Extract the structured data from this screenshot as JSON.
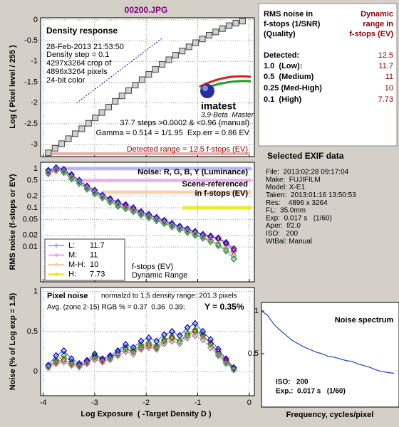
{
  "title": "00200.JPG",
  "chart_data": [
    {
      "type": "line",
      "title": "Density response",
      "ylabel": "Log ( Pixel level / 255 )",
      "xlim": [
        -4.05,
        0.1
      ],
      "ylim": [
        -3.29,
        0.05
      ],
      "yticks": [
        0,
        -0.5,
        -1,
        -1.5,
        -2,
        -2.5,
        -3
      ],
      "grid": true,
      "x": [
        -3.9,
        -3.77,
        -3.64,
        -3.51,
        -3.38,
        -3.25,
        -3.12,
        -2.99,
        -2.86,
        -2.73,
        -2.6,
        -2.47,
        -2.34,
        -2.21,
        -2.08,
        -1.95,
        -1.82,
        -1.69,
        -1.56,
        -1.43,
        -1.3,
        -1.17,
        -1.04,
        -0.91,
        -0.78,
        -0.65,
        -0.52,
        -0.39,
        -0.26,
        -0.13
      ],
      "series": [
        {
          "color": "#404040",
          "marker": "square",
          "values": [
            -3.2,
            -3.09,
            -2.98,
            -2.86,
            -2.74,
            -2.62,
            -2.49,
            -2.36,
            -2.23,
            -2.1,
            -1.96,
            -1.83,
            -1.7,
            -1.57,
            -1.44,
            -1.31,
            -1.19,
            -1.07,
            -0.96,
            -0.85,
            -0.75,
            -0.65,
            -0.55,
            -0.46,
            -0.37,
            -0.29,
            -0.21,
            -0.14,
            -0.08,
            -0.03
          ]
        },
        {
          "color": "#2828c8",
          "dashed": true,
          "x": [
            -3.35,
            -1.7
          ],
          "values": [
            -2.0,
            -0.45
          ]
        }
      ],
      "info": [
        "28-Feb-2013 21:53:50",
        "Density step = 0.1",
        "4297x3264 crop of",
        "4896x3264 pixels",
        "24-bit color"
      ],
      "logo": "imatest",
      "version": "3.9-Beta  Master",
      "stats": [
        "37.7 steps >0.0002 & <0.96 (manual)",
        "Gamma = 0.514 = 1/1.95  Exp.err = 0.86 EV"
      ],
      "detected": "Detected range = 12.5 f-stops (EV)"
    },
    {
      "type": "line",
      "title": "Noise: R, G, B, Y (Luminance)",
      "ylabel": "RMS noise (f-stops or EV)",
      "log_scale": true,
      "xlim": [
        -4.05,
        0.1
      ],
      "ylim": [
        0.0013,
        1.45
      ],
      "yticks": [
        1,
        0.5,
        0.2,
        0.1,
        0.05,
        0.02,
        0.01
      ],
      "grid": true,
      "x": [
        -3.9,
        -3.75,
        -3.6,
        -3.45,
        -3.3,
        -3.15,
        -3.0,
        -2.85,
        -2.7,
        -2.55,
        -2.4,
        -2.25,
        -2.1,
        -1.95,
        -1.8,
        -1.65,
        -1.5,
        -1.35,
        -1.2,
        -1.05,
        -0.9,
        -0.75,
        -0.6,
        -0.45,
        -0.3
      ],
      "series": [
        {
          "color": "#e01010",
          "marker": "diamond",
          "values": [
            0.75,
            0.9,
            0.9,
            0.65,
            0.5,
            0.35,
            0.27,
            0.2,
            0.16,
            0.13,
            0.11,
            0.09,
            0.075,
            0.065,
            0.055,
            0.045,
            0.038,
            0.033,
            0.028,
            0.024,
            0.02,
            0.018,
            0.016,
            0.012,
            0.008
          ]
        },
        {
          "color": "#10a010",
          "marker": "diamond",
          "values": [
            0.85,
            1.0,
            0.8,
            0.55,
            0.42,
            0.3,
            0.23,
            0.18,
            0.14,
            0.11,
            0.095,
            0.08,
            0.066,
            0.056,
            0.047,
            0.04,
            0.033,
            0.028,
            0.024,
            0.02,
            0.017,
            0.014,
            0.011,
            0.008,
            0.005
          ]
        },
        {
          "color": "#1010e0",
          "marker": "diamond",
          "values": [
            0.9,
            1.05,
            0.95,
            0.7,
            0.5,
            0.36,
            0.28,
            0.21,
            0.17,
            0.14,
            0.12,
            0.1,
            0.08,
            0.068,
            0.057,
            0.048,
            0.04,
            0.034,
            0.029,
            0.025,
            0.021,
            0.019,
            0.017,
            0.013,
            0.009
          ]
        },
        {
          "color": "#909090",
          "marker": "diamond",
          "values": [
            0.8,
            0.95,
            0.85,
            0.6,
            0.45,
            0.32,
            0.25,
            0.19,
            0.15,
            0.12,
            0.1,
            0.085,
            0.07,
            0.06,
            0.05,
            0.042,
            0.035,
            0.03,
            0.026,
            0.022,
            0.018,
            0.015,
            0.012,
            0.009,
            0.006
          ]
        }
      ],
      "thresholds": [
        {
          "name": "L:",
          "value": 1,
          "x_start": -3.75,
          "color": "#a8a8f8"
        },
        {
          "name": "M:",
          "value": 0.5,
          "x_start": -3.24,
          "color": "#f0a0f0"
        },
        {
          "name": "M-H:",
          "value": 0.25,
          "x_start": -2.87,
          "color": "#f8c8a0"
        },
        {
          "name": "H:",
          "value": 0.1,
          "x_start": -1.3,
          "color": "#e8e800"
        }
      ],
      "annotations": [
        "Scene-referenced",
        "in f-stops (EV)",
        "f-stops (EV)",
        "Dynamic Range"
      ]
    },
    {
      "type": "line",
      "title": "Pixel noise",
      "ylabel": "Noise (% of Log exp = 1.5)",
      "xlabel": "Log Exposure  ( -Target Density D )",
      "xlim": [
        -4.05,
        0.1
      ],
      "xticks": [
        -4,
        -3,
        -2,
        -1,
        0
      ],
      "ylim": [
        -0.3,
        1.05
      ],
      "yticks": [
        0,
        0.5,
        1
      ],
      "grid": true,
      "x": [
        -3.9,
        -3.75,
        -3.6,
        -3.45,
        -3.3,
        -3.15,
        -3.0,
        -2.85,
        -2.7,
        -2.55,
        -2.4,
        -2.25,
        -2.1,
        -1.95,
        -1.8,
        -1.65,
        -1.5,
        -1.35,
        -1.2,
        -1.05,
        -0.9,
        -0.75,
        -0.6,
        -0.45,
        -0.3
      ],
      "series": [
        {
          "color": "#e01010",
          "marker": "diamond",
          "values": [
            0.08,
            0.12,
            0.15,
            0.1,
            0.08,
            0.12,
            0.18,
            0.14,
            0.18,
            0.22,
            0.28,
            0.25,
            0.3,
            0.33,
            0.3,
            0.38,
            0.42,
            0.38,
            0.45,
            0.5,
            0.45,
            0.35,
            0.25,
            0.14,
            0.04
          ]
        },
        {
          "color": "#10a010",
          "marker": "diamond",
          "values": [
            0.06,
            0.14,
            0.2,
            0.12,
            0.07,
            0.1,
            0.2,
            0.16,
            0.16,
            0.25,
            0.3,
            0.26,
            0.33,
            0.36,
            0.32,
            0.4,
            0.44,
            0.38,
            0.48,
            0.52,
            0.46,
            0.34,
            0.22,
            0.12,
            0.03
          ]
        },
        {
          "color": "#1010e0",
          "marker": "diamond",
          "values": [
            0.08,
            0.2,
            0.26,
            0.16,
            0.1,
            0.14,
            0.22,
            0.16,
            0.2,
            0.26,
            0.34,
            0.3,
            0.38,
            0.42,
            0.38,
            0.46,
            0.5,
            0.45,
            0.55,
            0.6,
            0.5,
            0.4,
            0.28,
            0.16,
            0.05
          ]
        },
        {
          "color": "#909090",
          "marker": "diamond",
          "values": [
            0.05,
            0.1,
            0.12,
            0.08,
            0.06,
            0.1,
            0.15,
            0.12,
            0.15,
            0.2,
            0.25,
            0.22,
            0.28,
            0.3,
            0.28,
            0.35,
            0.38,
            0.35,
            0.42,
            0.45,
            0.4,
            0.3,
            0.2,
            0.1,
            0.02
          ]
        }
      ],
      "subtitle": "normalzd to 1.5 density range: 201.3 pixels",
      "average": "Avg. (zone 2-15) RGB % = 0.37  0.36  0.39;",
      "luminance": "Y = 0.35%"
    },
    {
      "type": "line",
      "title": "Noise spectrum",
      "xlabel": "Frequency, cycles/pixel",
      "xlim": [
        0,
        0.57
      ],
      "ylim": [
        -0.125,
        1.1
      ],
      "yticks": [
        0.5,
        1
      ],
      "grid": false,
      "x": [
        0,
        0.025,
        0.05,
        0.075,
        0.1,
        0.125,
        0.15,
        0.175,
        0.2,
        0.225,
        0.25,
        0.275,
        0.3,
        0.325,
        0.35,
        0.375,
        0.4,
        0.425,
        0.45,
        0.475,
        0.5,
        0.525,
        0.55
      ],
      "series": [
        {
          "color": "#2040c0",
          "values": [
            1.0,
            0.95,
            0.85,
            0.78,
            0.72,
            0.66,
            0.62,
            0.58,
            0.55,
            0.52,
            0.5,
            0.47,
            0.46,
            0.44,
            0.42,
            0.41,
            0.38,
            0.36,
            0.34,
            0.31,
            0.29,
            0.28,
            0.27
          ]
        }
      ],
      "notes": [
        "ISO:   200",
        "Exp.:  0.017 s   (1/60)"
      ]
    }
  ],
  "rms_table": {
    "header_left": [
      "RMS noise in",
      "f-stops (1/SNR)",
      "(Quality)"
    ],
    "header_right": [
      "Dynamic",
      "range in",
      "f-stops (EV)"
    ],
    "rows": [
      {
        "label": "Detected:",
        "value": "12.5"
      },
      {
        "label": "1.0  (Low):",
        "value": "11.7"
      },
      {
        "label": "0.5  (Medium)",
        "value": "11"
      },
      {
        "label": "0.25 (Med-High)",
        "value": "10"
      },
      {
        "label": "0.1  (High)",
        "value": "7.73"
      }
    ]
  },
  "exif": {
    "title": "Selected EXIF data",
    "lines": [
      "File:  2013:02:28 09:17:04",
      "Make:  FUJIFILM",
      "Model: X-E1",
      "Taken:  2013:01:16 13:50:53",
      "Res:    4896 x 3264",
      "FL:  35.0mm",
      "Exp:  0.017 s   (1/60)",
      "Aper:  f/2.0",
      "ISO:   200",
      "WtBal: Manual"
    ]
  }
}
